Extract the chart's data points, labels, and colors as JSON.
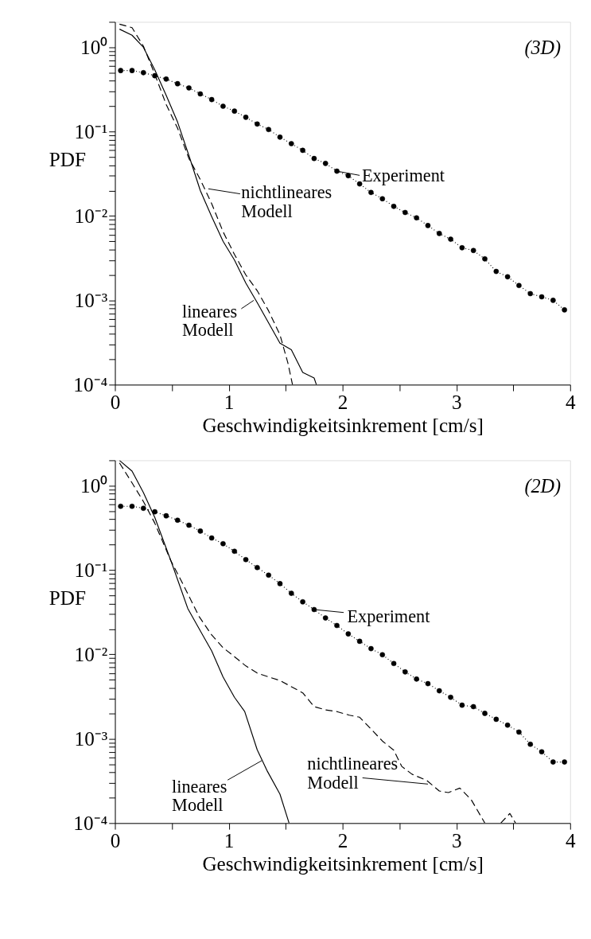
{
  "chart_data": [
    {
      "type": "line",
      "xlabel": "Geschwindigkeitsinkrement [cm/s]",
      "ylabel": "PDF",
      "log": true,
      "grid": false,
      "xlim": [
        0,
        4
      ],
      "ylim": [
        0.0001,
        2
      ],
      "xticks": [
        0,
        {
          "value": 0.5,
          "label": null
        },
        1,
        {
          "value": 1.5,
          "label": null
        },
        2,
        {
          "value": 2.5,
          "label": null
        },
        3,
        {
          "value": 3.5,
          "label": null
        },
        4
      ],
      "yticks": [
        {
          "value": 0.0001,
          "label": "10⁻⁴"
        },
        {
          "value": 0.0002,
          "label": null
        },
        {
          "value": 0.0003,
          "label": null
        },
        {
          "value": 0.0004,
          "label": null
        },
        {
          "value": 0.0005,
          "label": null
        },
        {
          "value": 0.0006,
          "label": null
        },
        {
          "value": 0.0007,
          "label": null
        },
        {
          "value": 0.0008,
          "label": null
        },
        {
          "value": 0.0009,
          "label": null
        },
        {
          "value": 0.001,
          "label": "10⁻³"
        },
        {
          "value": 0.002,
          "label": null
        },
        {
          "value": 0.003,
          "label": null
        },
        {
          "value": 0.004,
          "label": null
        },
        {
          "value": 0.005,
          "label": null
        },
        {
          "value": 0.006,
          "label": null
        },
        {
          "value": 0.007,
          "label": null
        },
        {
          "value": 0.008,
          "label": null
        },
        {
          "value": 0.009,
          "label": null
        },
        {
          "value": 0.01,
          "label": "10⁻²"
        },
        {
          "value": 0.02,
          "label": null
        },
        {
          "value": 0.03,
          "label": null
        },
        {
          "value": 0.04,
          "label": null
        },
        {
          "value": 0.05,
          "label": null
        },
        {
          "value": 0.06,
          "label": null
        },
        {
          "value": 0.07,
          "label": null
        },
        {
          "value": 0.08,
          "label": null
        },
        {
          "value": 0.09,
          "label": null
        },
        {
          "value": 0.1,
          "label": "10⁻¹"
        },
        {
          "value": 0.2,
          "label": null
        },
        {
          "value": 0.3,
          "label": null
        },
        {
          "value": 0.4,
          "label": null
        },
        {
          "value": 0.5,
          "label": null
        },
        {
          "value": 0.6,
          "label": null
        },
        {
          "value": 0.7,
          "label": null
        },
        {
          "value": 0.8,
          "label": null
        },
        {
          "value": 0.9,
          "label": null
        },
        {
          "value": 1,
          "label": "10⁰"
        },
        {
          "value": 2,
          "label": null
        }
      ],
      "series": [
        {
          "color": "#000000",
          "line_style": "dotted",
          "marker": "circle",
          "x": [
            0.05,
            0.15,
            0.25,
            0.35,
            0.45,
            0.55,
            0.65,
            0.75,
            0.85,
            0.95,
            1.05,
            1.15,
            1.25,
            1.35,
            1.45,
            1.55,
            1.65,
            1.75,
            1.85,
            1.95,
            2.05,
            2.15,
            2.25,
            2.35,
            2.45,
            2.55,
            2.65,
            2.75,
            2.85,
            2.95,
            3.05,
            3.15,
            3.25,
            3.35,
            3.45,
            3.55,
            3.65,
            3.75,
            3.85,
            3.95
          ],
          "values": [
            0.53,
            0.53,
            0.5,
            0.46,
            0.42,
            0.37,
            0.33,
            0.28,
            0.24,
            0.2,
            0.175,
            0.148,
            0.123,
            0.106,
            0.086,
            0.072,
            0.06,
            0.048,
            0.042,
            0.034,
            0.03,
            0.024,
            0.019,
            0.016,
            0.013,
            0.011,
            0.0095,
            0.0077,
            0.0062,
            0.0053,
            0.0042,
            0.0039,
            0.0031,
            0.0022,
            0.0019,
            0.0015,
            0.0012,
            0.0011,
            0.001,
            0.00077
          ]
        },
        {
          "color": "#000000",
          "line_style": "dashed",
          "marker": "none",
          "x": [
            0.04,
            0.15,
            0.25,
            0.35,
            0.45,
            0.55,
            0.65,
            0.75,
            0.85,
            0.95,
            1.05,
            1.15,
            1.25,
            1.35,
            1.45,
            1.52,
            1.56
          ],
          "values": [
            1.88,
            1.71,
            1.03,
            0.48,
            0.21,
            0.11,
            0.048,
            0.027,
            0.014,
            0.0065,
            0.0035,
            0.002,
            0.0013,
            0.00075,
            0.00039,
            0.00018,
            0.0001
          ]
        },
        {
          "color": "#000000",
          "line_style": "solid",
          "marker": "none",
          "x": [
            0.04,
            0.15,
            0.25,
            0.35,
            0.45,
            0.55,
            0.65,
            0.75,
            0.85,
            0.95,
            1.05,
            1.15,
            1.25,
            1.35,
            1.45,
            1.55,
            1.65,
            1.75,
            1.77
          ],
          "values": [
            1.64,
            1.39,
            1.0,
            0.54,
            0.27,
            0.13,
            0.052,
            0.02,
            0.0098,
            0.005,
            0.003,
            0.0016,
            0.00094,
            0.00054,
            0.00031,
            0.00026,
            0.00014,
            0.00012,
            0.0001
          ]
        }
      ],
      "annotations": [
        {
          "text": "Experiment",
          "x": 1.95,
          "y": 0.034
        },
        {
          "text": "nichtlineares\nModell",
          "x": 0.82,
          "y": 0.021
        },
        {
          "text": "lineares\nModell",
          "x": 1.22,
          "y": 0.001
        },
        "(3D)"
      ]
    },
    {
      "type": "line",
      "xlabel": "Geschwindigkeitsinkrement [cm/s]",
      "ylabel": "PDF",
      "log": true,
      "grid": false,
      "xlim": [
        0,
        4
      ],
      "ylim": [
        0.0001,
        2
      ],
      "xticks": [
        0,
        {
          "value": 0.5,
          "label": null
        },
        1,
        {
          "value": 1.5,
          "label": null
        },
        2,
        {
          "value": 2.5,
          "label": null
        },
        3,
        {
          "value": 3.5,
          "label": null
        },
        4
      ],
      "yticks": [
        {
          "value": 0.0001,
          "label": "10⁻⁴"
        },
        {
          "value": 0.0002,
          "label": null
        },
        {
          "value": 0.0003,
          "label": null
        },
        {
          "value": 0.0004,
          "label": null
        },
        {
          "value": 0.0005,
          "label": null
        },
        {
          "value": 0.0006,
          "label": null
        },
        {
          "value": 0.0007,
          "label": null
        },
        {
          "value": 0.0008,
          "label": null
        },
        {
          "value": 0.0009,
          "label": null
        },
        {
          "value": 0.001,
          "label": "10⁻³"
        },
        {
          "value": 0.002,
          "label": null
        },
        {
          "value": 0.003,
          "label": null
        },
        {
          "value": 0.004,
          "label": null
        },
        {
          "value": 0.005,
          "label": null
        },
        {
          "value": 0.006,
          "label": null
        },
        {
          "value": 0.007,
          "label": null
        },
        {
          "value": 0.008,
          "label": null
        },
        {
          "value": 0.009,
          "label": null
        },
        {
          "value": 0.01,
          "label": "10⁻²"
        },
        {
          "value": 0.02,
          "label": null
        },
        {
          "value": 0.03,
          "label": null
        },
        {
          "value": 0.04,
          "label": null
        },
        {
          "value": 0.05,
          "label": null
        },
        {
          "value": 0.06,
          "label": null
        },
        {
          "value": 0.07,
          "label": null
        },
        {
          "value": 0.08,
          "label": null
        },
        {
          "value": 0.09,
          "label": null
        },
        {
          "value": 0.1,
          "label": "10⁻¹"
        },
        {
          "value": 0.2,
          "label": null
        },
        {
          "value": 0.3,
          "label": null
        },
        {
          "value": 0.4,
          "label": null
        },
        {
          "value": 0.5,
          "label": null
        },
        {
          "value": 0.6,
          "label": null
        },
        {
          "value": 0.7,
          "label": null
        },
        {
          "value": 0.8,
          "label": null
        },
        {
          "value": 0.9,
          "label": null
        },
        {
          "value": 1,
          "label": "10⁰"
        },
        {
          "value": 2,
          "label": null
        }
      ],
      "series": [
        {
          "color": "#000000",
          "line_style": "dotted",
          "marker": "circle",
          "x": [
            0.05,
            0.15,
            0.25,
            0.35,
            0.45,
            0.55,
            0.65,
            0.75,
            0.85,
            0.95,
            1.05,
            1.15,
            1.25,
            1.35,
            1.45,
            1.55,
            1.65,
            1.75,
            1.85,
            1.95,
            2.05,
            2.15,
            2.25,
            2.35,
            2.45,
            2.55,
            2.65,
            2.75,
            2.85,
            2.95,
            3.05,
            3.15,
            3.25,
            3.35,
            3.45,
            3.55,
            3.65,
            3.75,
            3.85,
            3.95
          ],
          "values": [
            0.57,
            0.57,
            0.54,
            0.49,
            0.44,
            0.39,
            0.34,
            0.29,
            0.24,
            0.205,
            0.167,
            0.133,
            0.107,
            0.087,
            0.069,
            0.053,
            0.042,
            0.034,
            0.027,
            0.022,
            0.0175,
            0.0143,
            0.0117,
            0.0099,
            0.0078,
            0.0062,
            0.0051,
            0.0045,
            0.0037,
            0.0031,
            0.0025,
            0.0024,
            0.002,
            0.0017,
            0.00145,
            0.0012,
            0.00086,
            0.0007,
            0.00053,
            0.00053
          ]
        },
        {
          "color": "#000000",
          "line_style": "dashed",
          "marker": "none",
          "x": [
            0.04,
            0.15,
            0.25,
            0.35,
            0.49,
            0.6,
            0.74,
            0.85,
            0.95,
            1.05,
            1.15,
            1.25,
            1.35,
            1.45,
            1.65,
            1.75,
            1.85,
            1.95,
            2.06,
            2.15,
            2.25,
            2.35,
            2.45,
            2.52,
            2.61,
            2.74,
            2.85,
            2.93,
            3.03,
            3.13,
            3.25,
            3.3,
            3.39,
            3.47,
            3.52
          ],
          "values": [
            1.86,
            1.08,
            0.65,
            0.36,
            0.13,
            0.067,
            0.028,
            0.017,
            0.012,
            0.0094,
            0.0073,
            0.006,
            0.0054,
            0.0049,
            0.0035,
            0.0024,
            0.0022,
            0.0021,
            0.0019,
            0.0018,
            0.0013,
            0.00094,
            0.00073,
            0.00047,
            0.00038,
            0.00032,
            0.00024,
            0.00023,
            0.00026,
            0.00019,
            0.0001,
            null,
            0.0001,
            0.00013,
            0.0001
          ]
        },
        {
          "color": "#000000",
          "line_style": "solid",
          "marker": "none",
          "x": [
            0.04,
            0.15,
            0.25,
            0.35,
            0.5,
            0.64,
            0.75,
            0.85,
            0.95,
            1.05,
            1.14,
            1.25,
            1.34,
            1.45,
            1.53
          ],
          "values": [
            1.99,
            1.49,
            0.83,
            0.42,
            0.12,
            0.035,
            0.019,
            0.011,
            0.0054,
            0.0031,
            0.0021,
            0.00074,
            0.00041,
            0.00022,
            0.0001
          ]
        }
      ],
      "annotations": [
        {
          "text": "Experiment",
          "x": 1.75,
          "y": 0.034
        },
        {
          "text": "nichtlineares\nModell",
          "x": 2.75,
          "y": 0.00029
        },
        {
          "text": "lineares\nModell",
          "x": 1.29,
          "y": 0.00055
        },
        "(2D)"
      ]
    }
  ]
}
